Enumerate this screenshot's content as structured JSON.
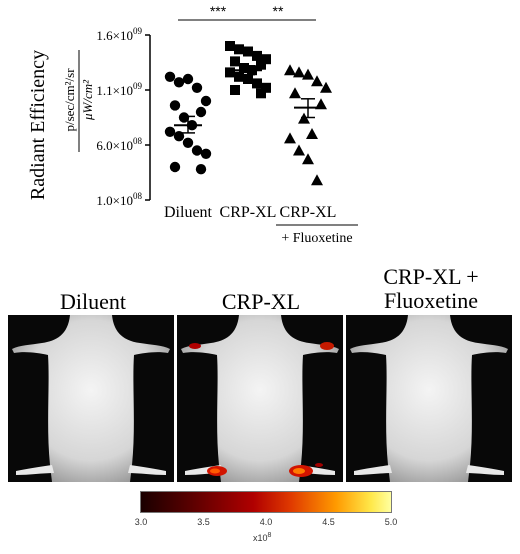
{
  "chart_data": {
    "type": "scatter",
    "ylabel": "Radiant Efficiency",
    "ylabel_units_top": "p/sec/cm²/sr",
    "ylabel_units_bottom": "μW/cm²",
    "yticks": [
      {
        "value": 1600000000.0,
        "mantissa": "1.6×10",
        "exp": "09"
      },
      {
        "value": 1100000000.0,
        "mantissa": "1.1×10",
        "exp": "09"
      },
      {
        "value": 600000000.0,
        "mantissa": "6.0×10",
        "exp": "08"
      },
      {
        "value": 100000000.0,
        "mantissa": "1.0×10",
        "exp": "08"
      }
    ],
    "ylim": [
      100000000.0,
      1600000000.0
    ],
    "categories": [
      "Diluent",
      "CRP-XL",
      "CRP-XL\n+ Fluoxetine"
    ],
    "category_line1": [
      "Diluent",
      "CRP-XL",
      "CRP-XL"
    ],
    "category_line2": [
      "",
      "",
      "+ Fluoxetine"
    ],
    "series": [
      {
        "marker": "circle",
        "values": [
          1220000000.0,
          1170000000.0,
          1200000000.0,
          1120000000.0,
          1000000000.0,
          960000000.0,
          900000000.0,
          850000000.0,
          780000000.0,
          720000000.0,
          680000000.0,
          620000000.0,
          550000000.0,
          520000000.0,
          400000000.0,
          380000000.0
        ],
        "mean": 780000000.0,
        "sem_low": 710000000.0,
        "sem_high": 860000000.0
      },
      {
        "marker": "square",
        "values": [
          1500000000.0,
          1470000000.0,
          1450000000.0,
          1410000000.0,
          1380000000.0,
          1360000000.0,
          1330000000.0,
          1300000000.0,
          1280000000.0,
          1260000000.0,
          1220000000.0,
          1200000000.0,
          1160000000.0,
          1120000000.0,
          1100000000.0,
          1070000000.0
        ],
        "mean": 1280000000.0,
        "sem_low": 1240000000.0,
        "sem_high": 1320000000.0
      },
      {
        "marker": "triangle",
        "values": [
          1280000000.0,
          1260000000.0,
          1240000000.0,
          1180000000.0,
          1120000000.0,
          1070000000.0,
          970000000.0,
          840000000.0,
          700000000.0,
          660000000.0,
          550000000.0,
          470000000.0,
          280000000.0
        ],
        "mean": 940000000.0,
        "sem_low": 850000000.0,
        "sem_high": 1020000000.0
      }
    ],
    "significance": [
      {
        "from": 0,
        "to": 1,
        "label": "***"
      },
      {
        "from": 1,
        "to": 2,
        "label": "**"
      }
    ]
  },
  "images": {
    "panels": [
      {
        "label": "Diluent"
      },
      {
        "label": "CRP-XL"
      },
      {
        "label_line1": "CRP-XL +",
        "label_line2": "Fluoxetine"
      }
    ],
    "colorbar": {
      "ticks": [
        "3.0",
        "3.5",
        "4.0",
        "4.5",
        "5.0"
      ],
      "tick_values": [
        3.0,
        3.5,
        4.0,
        4.5,
        5.0
      ],
      "range": [
        3.0,
        5.0
      ],
      "scale_mantissa": "x10",
      "scale_exp": "8"
    }
  }
}
